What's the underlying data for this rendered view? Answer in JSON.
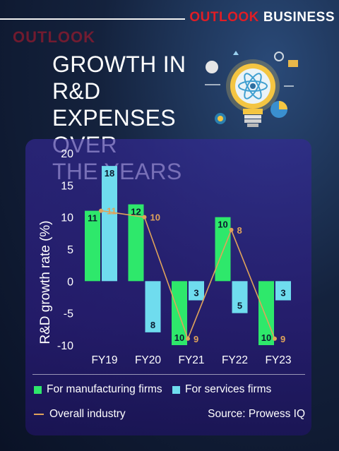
{
  "brand": {
    "part1": "OUTLOOK",
    "part2": "BUSINESS"
  },
  "ghost_text": "OUTLOOK",
  "title": "GROWTH IN R&D\nEXPENSES OVER\nTHE YEARS",
  "icon": "lightbulb-atom-icon",
  "colors": {
    "manufacturing": "#2ee86b",
    "services": "#6fdcee",
    "overall": "#e0a35a",
    "brand_red": "#e01d25"
  },
  "chart_data": {
    "type": "bar",
    "categories": [
      "FY19",
      "FY20",
      "FY21",
      "FY22",
      "FY23"
    ],
    "series": [
      {
        "name": "For manufacturing firms",
        "values": [
          11,
          12,
          -10,
          10,
          -10
        ]
      },
      {
        "name": "For services firms",
        "values": [
          18,
          -8,
          -3,
          -5,
          -3
        ]
      },
      {
        "name": "Overall industry",
        "type": "line",
        "values": [
          11,
          10,
          -9,
          8,
          -9
        ]
      }
    ],
    "bar_labels": {
      "manufacturing": [
        "11",
        "12",
        "10",
        "10",
        "10"
      ],
      "services": [
        "18",
        "8",
        "3",
        "5",
        "3"
      ],
      "overall": [
        "11",
        "10",
        "9",
        "8",
        "9"
      ]
    },
    "ylabel": "R&D growth rate (%)",
    "ylim": [
      -10,
      20
    ],
    "yticks": [
      "20",
      "15",
      "10",
      "5",
      "0",
      "-5",
      "-10"
    ],
    "grid": false,
    "legend_position": "bottom"
  },
  "legend": {
    "manufacturing": "For manufacturing firms",
    "services": "For services firms",
    "overall": "Overall industry"
  },
  "source": "Source: Prowess IQ"
}
